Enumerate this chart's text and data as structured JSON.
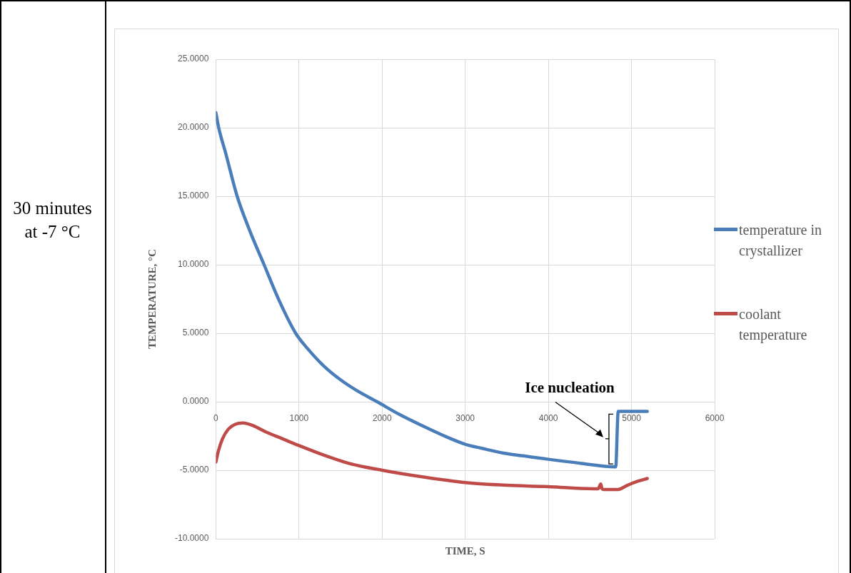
{
  "chart_data": {
    "type": "line",
    "xlabel": "TIME, S",
    "ylabel": "TEMPERATURE, °C",
    "xlim": [
      0,
      6000
    ],
    "xticks": [
      0,
      1000,
      2000,
      3000,
      4000,
      5000,
      6000
    ],
    "ylim": [
      -10,
      25
    ],
    "yticks": [
      {
        "value": -10,
        "label": "-10.0000"
      },
      {
        "value": -5,
        "label": "-5.0000"
      },
      {
        "value": 0,
        "label": "0.0000"
      },
      {
        "value": 5,
        "label": "5.0000"
      },
      {
        "value": 10,
        "label": "10.0000"
      },
      {
        "value": 15,
        "label": "15.0000"
      },
      {
        "value": 20,
        "label": "20.0000"
      },
      {
        "value": 25,
        "label": "25.0000"
      }
    ],
    "grid": true,
    "legend": "right",
    "marker": "none",
    "line_style": "solid",
    "series": [
      {
        "name": "temperature in crystallizer",
        "color": "#4a7ebb",
        "x": [
          0,
          34,
          120,
          256,
          400,
          580,
          760,
          960,
          1100,
          1300,
          1500,
          1700,
          1940,
          2200,
          2500,
          2750,
          3000,
          3200,
          3460,
          3700,
          4000,
          4400,
          4800,
          4810,
          4840,
          5000,
          5190
        ],
        "values": [
          21.1,
          20,
          18.1,
          15,
          12.6,
          10,
          7.4,
          5,
          3.9,
          2.6,
          1.6,
          0.8,
          0,
          -0.9,
          -1.8,
          -2.5,
          -3.1,
          -3.4,
          -3.75,
          -3.95,
          -4.2,
          -4.5,
          -4.75,
          -4.75,
          -0.7,
          -0.7,
          -0.7
        ]
      },
      {
        "name": "coolant temperature",
        "color": "#be4b48",
        "x": [
          0,
          30,
          80,
          150,
          230,
          325,
          450,
          600,
          800,
          1000,
          1300,
          1600,
          2000,
          2500,
          3000,
          3500,
          4000,
          4300,
          4600,
          4630,
          4645,
          4660,
          4700,
          4840,
          4950,
          5050,
          5190
        ],
        "values": [
          -4.4,
          -3.6,
          -2.7,
          -2,
          -1.65,
          -1.55,
          -1.75,
          -2.2,
          -2.7,
          -3.2,
          -3.9,
          -4.5,
          -5,
          -5.5,
          -5.9,
          -6.1,
          -6.2,
          -6.3,
          -6.35,
          -6.0,
          -6.35,
          -6.4,
          -6.4,
          -6.4,
          -6.1,
          -5.85,
          -5.6
        ]
      }
    ],
    "annotations": [
      "30 minutes at -7 °C",
      {
        "text": "Ice nucleation",
        "x": 4780,
        "y": -2.7
      }
    ]
  }
}
